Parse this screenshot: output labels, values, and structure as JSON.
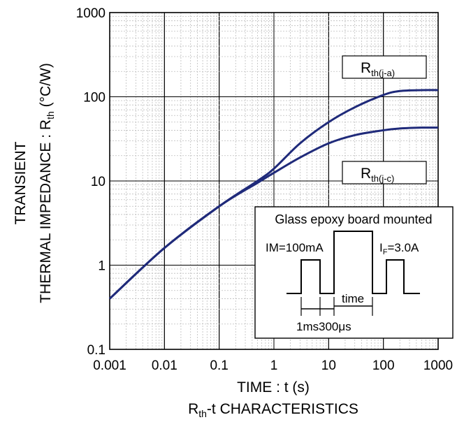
{
  "chart_data": {
    "type": "line",
    "x_scale": "log",
    "y_scale": "log",
    "xlim": [
      0.001,
      1000
    ],
    "ylim": [
      0.1,
      1000
    ],
    "x_ticks": [
      "0.001",
      "0.01",
      "0.1",
      "1",
      "10",
      "100",
      "1000"
    ],
    "y_ticks": [
      "0.1",
      "1",
      "10",
      "100",
      "1000"
    ],
    "grid": true,
    "xlabel": "TIME : t (s)",
    "ylabel_line1": "TRANSIENT",
    "ylabel_line2_prefix": "THERMAL IMPEDANCE : R",
    "ylabel_line2_sub": "th",
    "ylabel_line2_suffix": " (°C/W)",
    "caption_main": "R",
    "caption_sub": "th",
    "caption_suffix": "-t CHARACTERISTICS",
    "series": [
      {
        "name_main": "R",
        "name_sub": "th(j-a)",
        "color": "#1f2a7a",
        "x": [
          0.001,
          0.01,
          0.1,
          0.5,
          1,
          3,
          10,
          30,
          100,
          200,
          500,
          1000
        ],
        "y": [
          0.4,
          1.6,
          5.0,
          10.0,
          14.0,
          28.0,
          50.0,
          75.0,
          105.0,
          117.0,
          120.0,
          120.0
        ]
      },
      {
        "name_main": "R",
        "name_sub": "th(j-c)",
        "color": "#1f2a7a",
        "x": [
          0.001,
          0.01,
          0.1,
          0.5,
          1,
          3,
          10,
          30,
          100,
          200,
          500,
          1000
        ],
        "y": [
          0.4,
          1.6,
          5.0,
          9.5,
          12.5,
          19.0,
          28.0,
          35.0,
          40.0,
          42.0,
          43.0,
          43.0
        ]
      }
    ],
    "inset": {
      "title": "Glass epoxy board mounted",
      "im_label": "IM=100mA",
      "if_main": "I",
      "if_sub": "F",
      "if_suffix": "=3.0A",
      "time_label": "time",
      "ms_label": "1ms",
      "us_label": "300μs"
    }
  }
}
